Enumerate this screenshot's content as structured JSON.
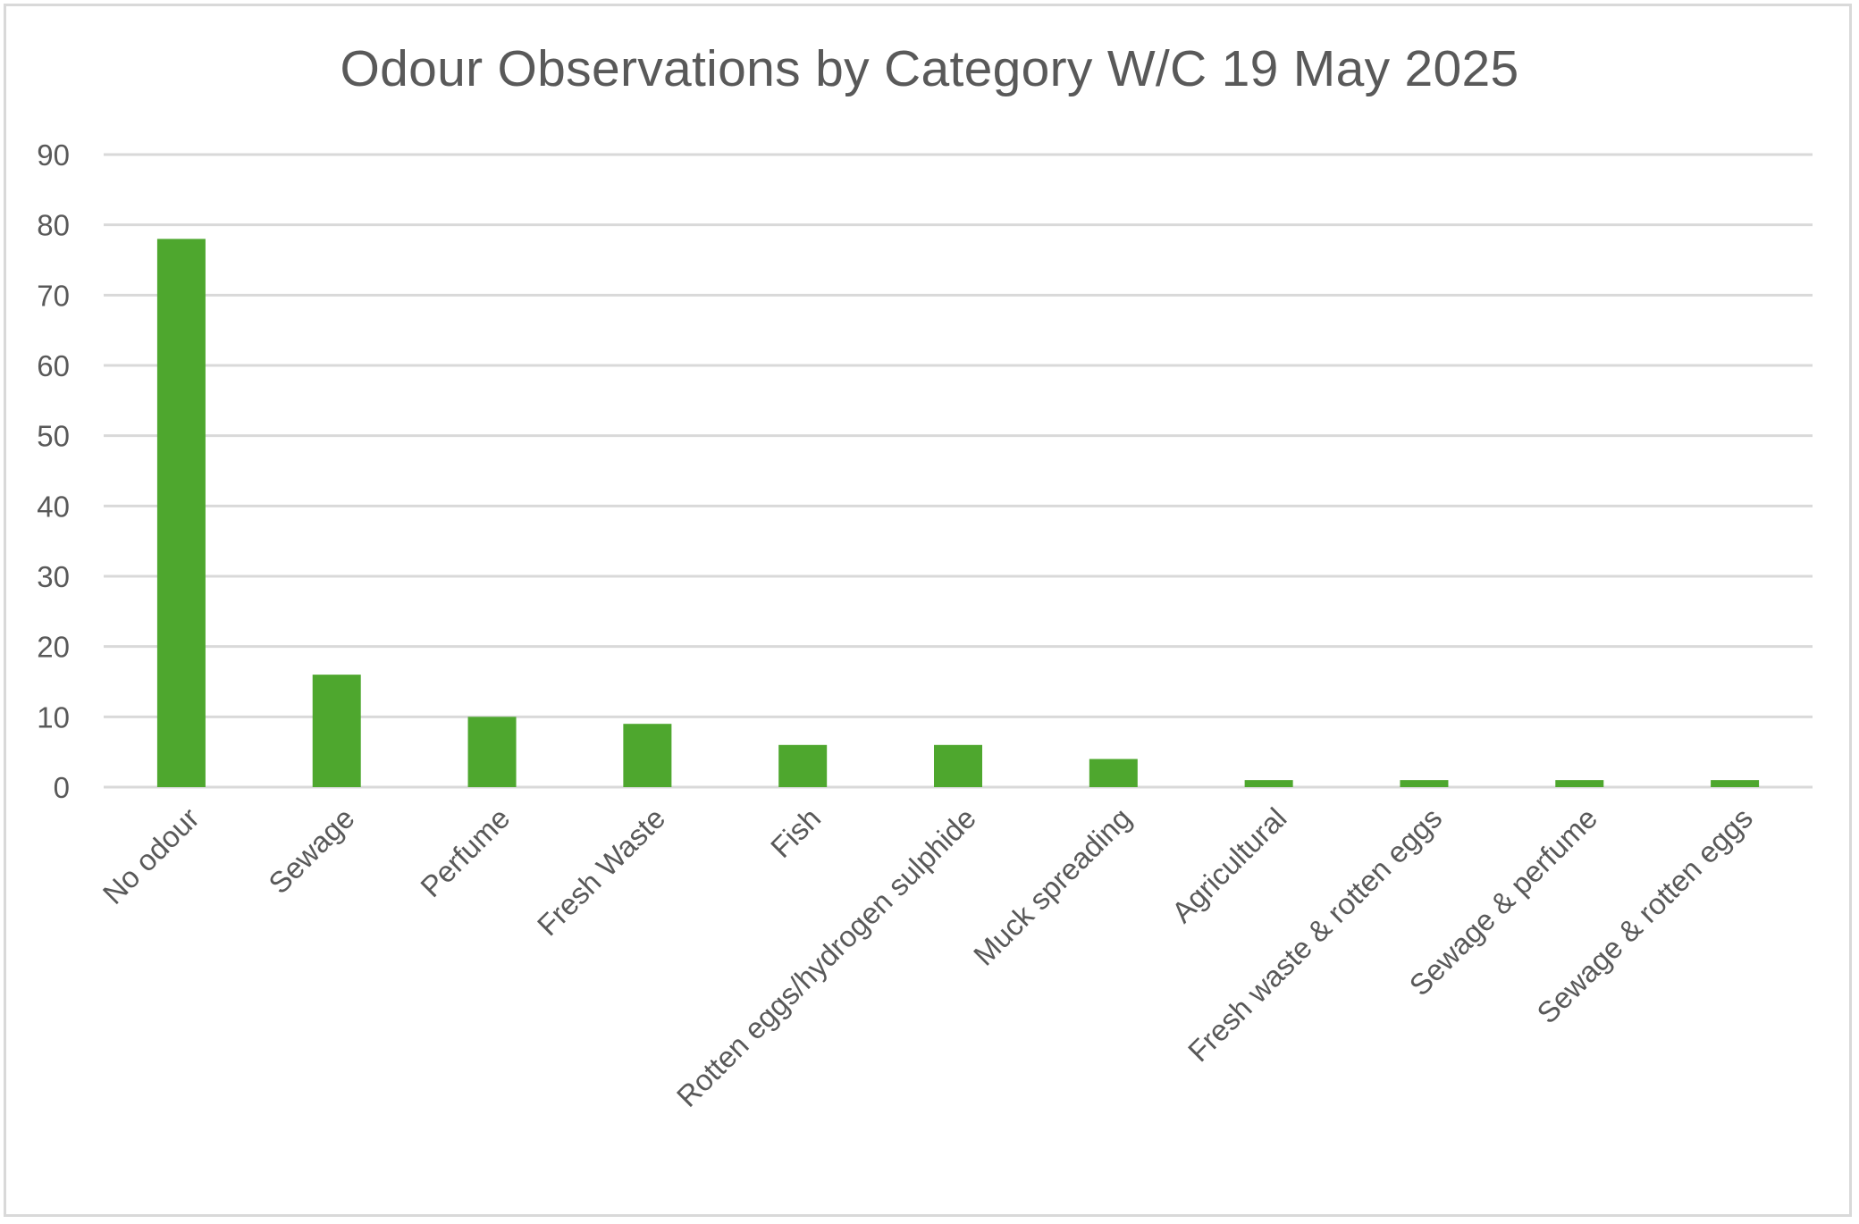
{
  "chart_data": {
    "type": "bar",
    "title": "Odour Observations by Category W/C 19 May 2025",
    "xlabel": "",
    "ylabel": "",
    "categories": [
      "No odour",
      "Sewage",
      "Perfume",
      "Fresh Waste",
      "Fish",
      "Rotten eggs/hydrogen sulphide",
      "Muck spreading",
      "Agricultural",
      "Fresh waste & rotten eggs",
      "Sewage & perfume",
      "Sewage & rotten eggs"
    ],
    "values": [
      78,
      16,
      10,
      9,
      6,
      6,
      4,
      1,
      1,
      1,
      1
    ],
    "ylim": [
      0,
      90
    ],
    "yticks": [
      0,
      10,
      20,
      30,
      40,
      50,
      60,
      70,
      80,
      90
    ],
    "grid": true,
    "legend": "none",
    "bar_color": "#4ea72e",
    "grid_color": "#d9d9d9"
  }
}
